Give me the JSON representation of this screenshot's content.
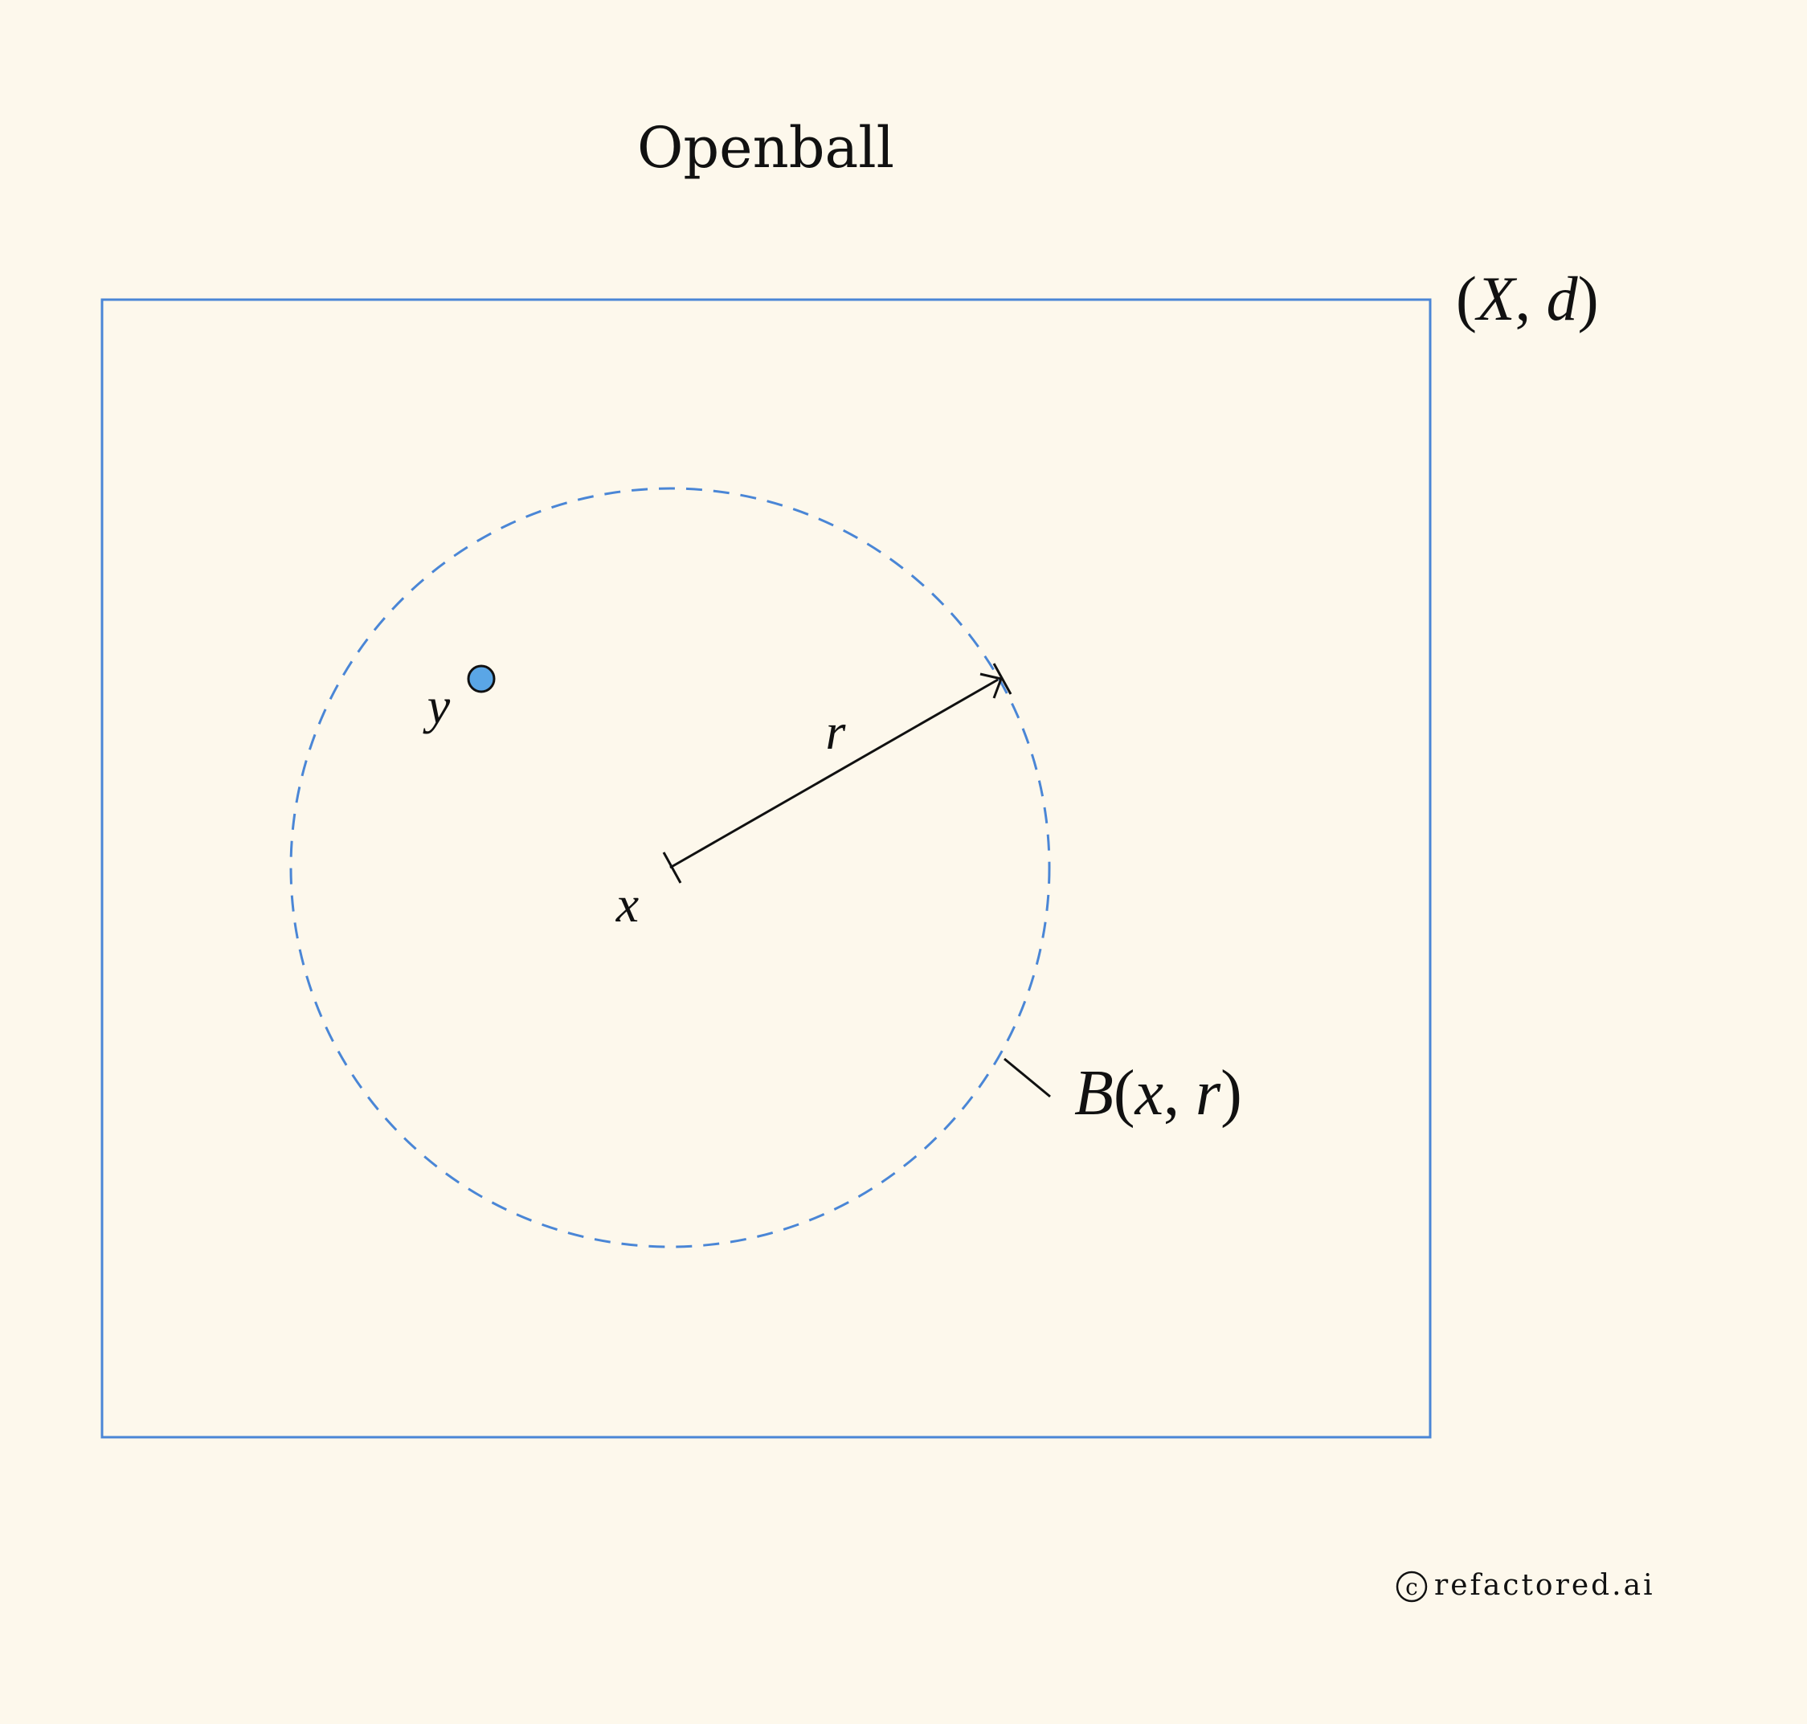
{
  "title": "Openball",
  "space_label": {
    "open_paren": "(",
    "set": "X",
    "comma": ", ",
    "metric": "d",
    "close_paren": ")"
  },
  "center_label": "x",
  "point_label": "y",
  "radius_label": "r",
  "ball_label": {
    "name": "B",
    "open_paren": "(",
    "center": "x",
    "comma": ", ",
    "radius": "r",
    "close_paren": ")"
  },
  "watermark": {
    "symbol": "c",
    "text": "refactored.ai"
  },
  "colors": {
    "background": "#fdf8ec",
    "accent": "#4a86d6",
    "point_fill": "#5aa6e6",
    "ink": "#111111"
  }
}
